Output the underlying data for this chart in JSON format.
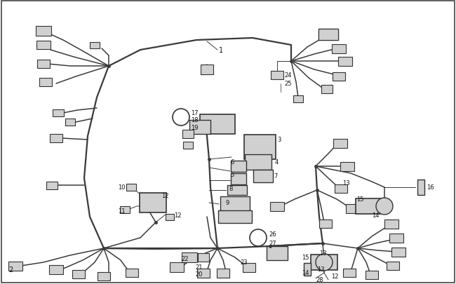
{
  "bg_color": "#ffffff",
  "line_color": "#3a3a3a",
  "component_fill": "#d0d0d0",
  "component_edge": "#333333",
  "label_color": "#111111",
  "fig_width": 6.5,
  "fig_height": 4.06,
  "dpi": 100,
  "lw_main": 1.6,
  "lw_branch": 1.1,
  "lw_thin": 0.7
}
